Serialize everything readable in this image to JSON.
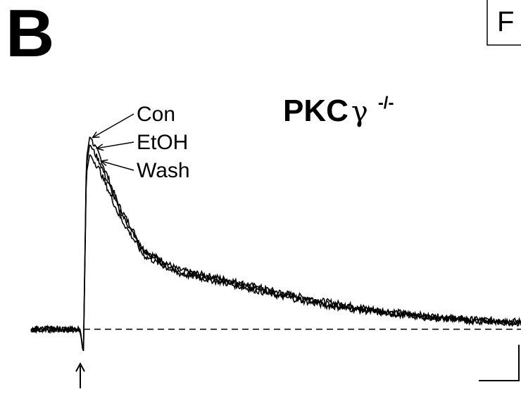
{
  "panel_letter": "B",
  "corner_label": "F",
  "chart_data": {
    "type": "line",
    "title_main": "PKC",
    "title_greek": "γ",
    "title_superscript": "-/-",
    "xlabel": "",
    "ylabel": "",
    "xlim": [
      0,
      1
    ],
    "ylim": [
      0,
      1
    ],
    "baseline": {
      "value": 0,
      "style": "dashed"
    },
    "stimulus_marker": {
      "x": 0.1,
      "symbol": "↑"
    },
    "scale_bar": "unlabeled",
    "series": [
      {
        "name": "Con",
        "x": [
          0.0,
          0.1,
          0.107,
          0.113,
          0.12,
          0.14,
          0.18,
          0.23,
          0.3,
          0.4,
          0.5,
          0.6,
          0.7,
          0.8,
          0.9,
          1.0
        ],
        "y": [
          0.0,
          0.0,
          -0.12,
          0.85,
          0.97,
          0.87,
          0.62,
          0.4,
          0.3,
          0.25,
          0.19,
          0.14,
          0.1,
          0.07,
          0.05,
          0.04
        ]
      },
      {
        "name": "EtOH",
        "x": [
          0.0,
          0.1,
          0.107,
          0.113,
          0.12,
          0.14,
          0.18,
          0.23,
          0.3,
          0.4,
          0.5,
          0.6,
          0.7,
          0.8,
          0.9,
          1.0
        ],
        "y": [
          0.0,
          0.0,
          -0.12,
          0.82,
          0.93,
          0.84,
          0.6,
          0.39,
          0.29,
          0.24,
          0.18,
          0.13,
          0.09,
          0.065,
          0.045,
          0.035
        ]
      },
      {
        "name": "Wash",
        "x": [
          0.0,
          0.1,
          0.107,
          0.113,
          0.12,
          0.14,
          0.18,
          0.23,
          0.3,
          0.4,
          0.5,
          0.6,
          0.7,
          0.8,
          0.9,
          1.0
        ],
        "y": [
          0.0,
          0.0,
          -0.12,
          0.78,
          0.88,
          0.8,
          0.57,
          0.37,
          0.28,
          0.23,
          0.17,
          0.12,
          0.085,
          0.06,
          0.04,
          0.03
        ]
      }
    ],
    "colors": {
      "trace": "#000000",
      "background": "#ffffff"
    }
  }
}
